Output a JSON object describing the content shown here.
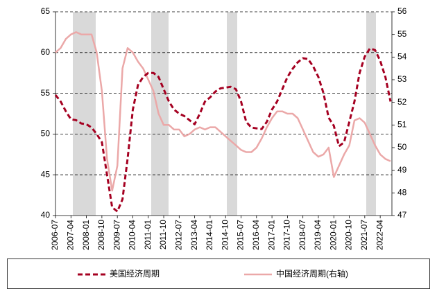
{
  "chart_data": {
    "type": "line",
    "categories": [
      "2006-07",
      null,
      null,
      "2007-04",
      null,
      null,
      "2008-01",
      null,
      null,
      "2008-10",
      null,
      null,
      "2009-07",
      null,
      null,
      "2010-04",
      null,
      null,
      "2011-01",
      null,
      null,
      "2011-10",
      null,
      null,
      "2012-07",
      null,
      null,
      "2013-04",
      null,
      null,
      "2014-01",
      null,
      null,
      "2014-10",
      null,
      null,
      "2015-07",
      null,
      null,
      "2016-04",
      null,
      null,
      "2017-01",
      null,
      null,
      "2017-10",
      null,
      null,
      "2018-07",
      null,
      null,
      "2019-04",
      null,
      null,
      "2020-01",
      null,
      null,
      "2020-10",
      null,
      null,
      "2021-07",
      null,
      null,
      "2022-04",
      null,
      null
    ],
    "series": [
      {
        "name": "美国经济周期",
        "color": "#a50021",
        "axis": "y",
        "dashed": true,
        "values": [
          54.8,
          54,
          52.8,
          51.8,
          51.7,
          51.3,
          51.2,
          50.8,
          50,
          49,
          45,
          41,
          40.5,
          42,
          47,
          53,
          56,
          57,
          57.5,
          57.5,
          57,
          55.5,
          54,
          53,
          52.5,
          52.2,
          51.7,
          51.2,
          52.5,
          54,
          54.5,
          55.2,
          55.6,
          55.7,
          55.8,
          55.5,
          54,
          51.5,
          50.8,
          50.7,
          50.6,
          51.5,
          53,
          54,
          55.5,
          57,
          58,
          58.8,
          59.3,
          59.2,
          58.3,
          57,
          55,
          52,
          51,
          48.5,
          49,
          51.5,
          54,
          57.5,
          59.5,
          60.5,
          60.3,
          59,
          57,
          54
        ]
      },
      {
        "name": "中国经济周期(右轴)",
        "color": "#eba8a8",
        "axis": "y2",
        "dashed": false,
        "values": [
          54.2,
          54.4,
          54.8,
          55,
          55.1,
          55,
          55,
          55,
          54.2,
          52.5,
          49.5,
          48.1,
          49.2,
          53.5,
          54.4,
          54.2,
          53.8,
          53.5,
          53,
          52.5,
          51.5,
          51,
          51,
          50.8,
          50.8,
          50.5,
          50.6,
          50.8,
          50.9,
          50.8,
          50.9,
          50.9,
          50.7,
          50.5,
          50.3,
          50.1,
          49.9,
          49.8,
          49.8,
          50,
          50.4,
          50.9,
          51.3,
          51.6,
          51.6,
          51.5,
          51.5,
          51.3,
          50.8,
          50.3,
          49.8,
          49.6,
          49.7,
          50,
          48.7,
          49.2,
          49.7,
          50.1,
          51.2,
          51.3,
          51.1,
          50.6,
          50.1,
          49.7,
          49.5,
          49.4
        ]
      }
    ],
    "ylim": [
      40,
      65
    ],
    "yticks": [
      40,
      45,
      50,
      55,
      60,
      65
    ],
    "y2lim": [
      47,
      56
    ],
    "y2ticks": [
      47,
      48,
      49,
      50,
      51,
      52,
      53,
      54,
      55,
      56
    ],
    "grid": true,
    "legend": "bottom"
  }
}
